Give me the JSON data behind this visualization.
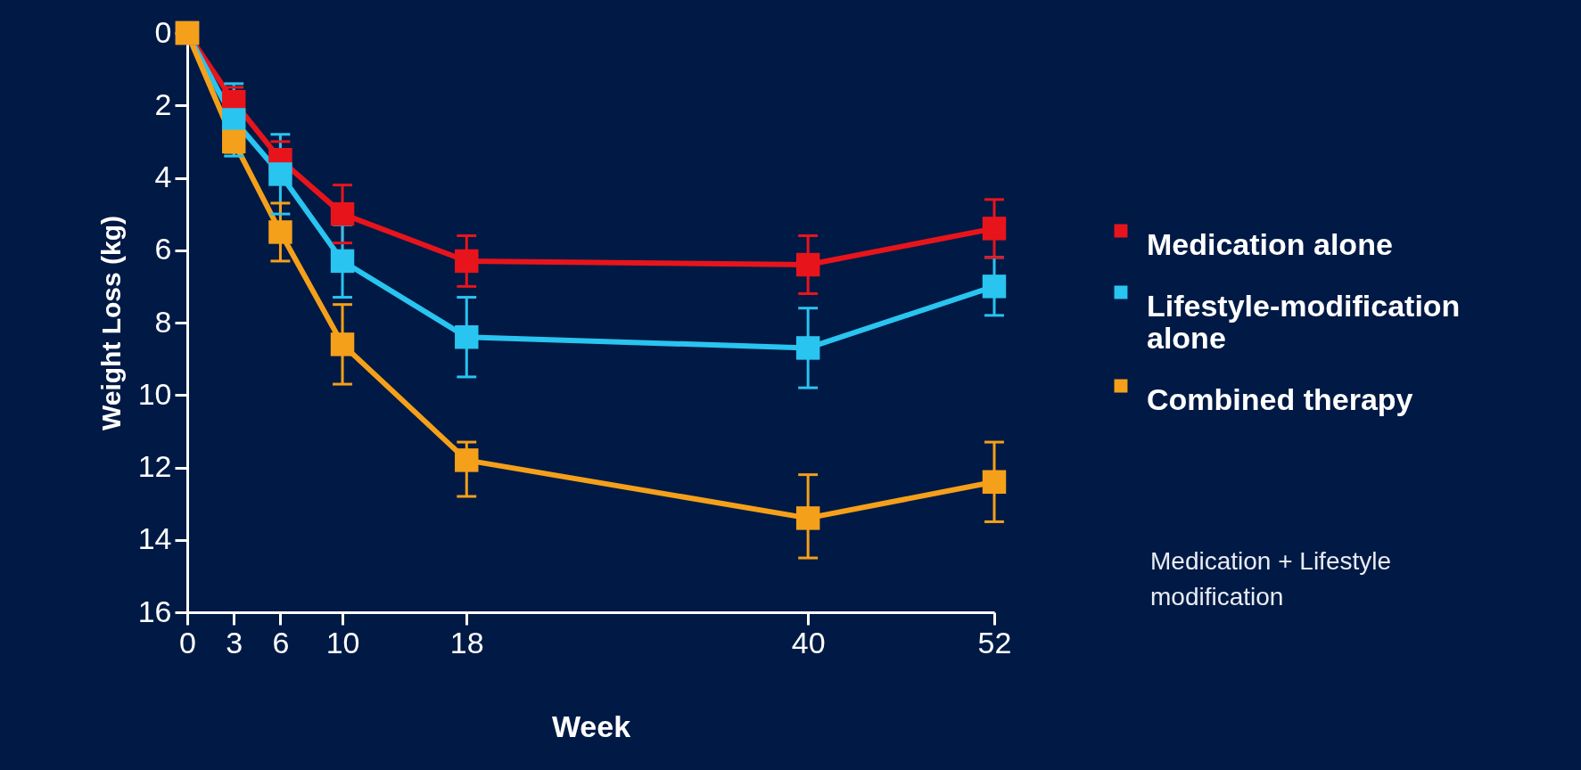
{
  "chart_data": {
    "type": "line",
    "xlabel": "Week",
    "ylabel": "Weight Loss (kg)",
    "x": [
      0,
      3,
      6,
      10,
      18,
      40,
      52
    ],
    "xlim": [
      0,
      52
    ],
    "xticks": [
      0,
      3,
      6,
      10,
      18,
      40,
      52
    ],
    "ylim": [
      16,
      0
    ],
    "yticks": [
      0,
      2,
      4,
      6,
      8,
      10,
      12,
      14,
      16
    ],
    "marker": "square",
    "grid": false,
    "legend": "right",
    "series": [
      {
        "name": "Medication alone",
        "color": "#e8141c",
        "values": [
          0,
          1.9,
          3.5,
          5.0,
          6.3,
          6.4,
          5.4
        ],
        "errors": [
          null,
          0.4,
          0.5,
          0.8,
          0.7,
          0.8,
          0.8
        ]
      },
      {
        "name": "Lifestyle-modification alone",
        "color": "#29c4f0",
        "values": [
          0,
          2.4,
          3.9,
          6.3,
          8.4,
          8.7,
          7.0
        ],
        "errors": [
          null,
          1.0,
          1.1,
          1.0,
          1.1,
          1.1,
          0.8
        ]
      },
      {
        "name": "Combined therapy",
        "color": "#f5a01a",
        "values": [
          0,
          3.0,
          5.5,
          8.6,
          11.8,
          13.4,
          12.4
        ],
        "errors": [
          null,
          0.3,
          0.8,
          1.1,
          [
            11.3,
            12.8
          ],
          [
            12.2,
            14.5
          ],
          [
            11.3,
            13.5
          ]
        ]
      }
    ],
    "annotations": [
      "Medication + Lifestyle modification"
    ]
  }
}
